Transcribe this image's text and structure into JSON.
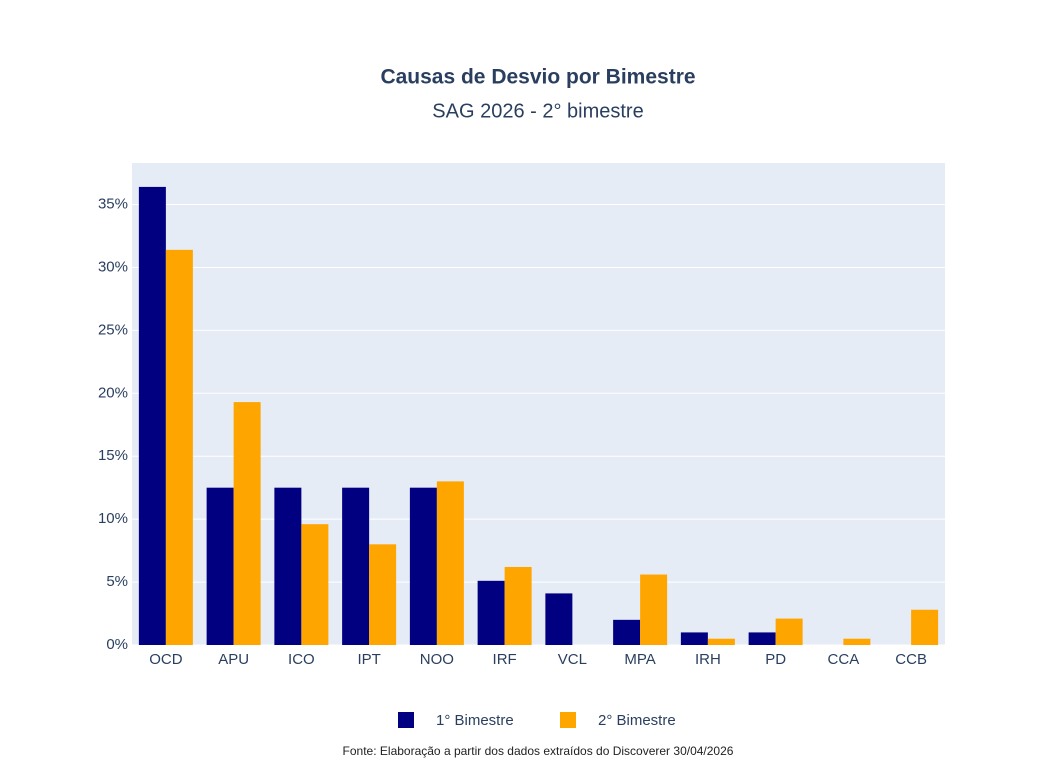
{
  "chart_data": {
    "type": "bar",
    "title": "Causas de Desvio por Bimestre",
    "subtitle": "SAG 2026 - 2° bimestre",
    "source": "Fonte: Elaboração a partir dos dados extraídos do Discoverer 30/04/2026",
    "categories": [
      "OCD",
      "APU",
      "ICO",
      "IPT",
      "NOO",
      "IRF",
      "VCL",
      "MPA",
      "IRH",
      "PD",
      "CCA",
      "CCB"
    ],
    "series": [
      {
        "name": "1° Bimestre",
        "color": "#000080",
        "values": [
          36.4,
          12.5,
          12.5,
          12.5,
          12.5,
          5.1,
          4.1,
          2.0,
          1.0,
          1.0,
          0,
          0
        ]
      },
      {
        "name": "2° Bimestre",
        "color": "#FFA500",
        "values": [
          31.4,
          19.3,
          9.6,
          8.0,
          13.0,
          6.2,
          0,
          5.6,
          0.5,
          2.1,
          0.5,
          2.8
        ]
      }
    ],
    "ylim": [
      0,
      38.3
    ],
    "yticks": [
      {
        "value": 0,
        "label": "0%"
      },
      {
        "value": 5,
        "label": "5%"
      },
      {
        "value": 10,
        "label": "10%"
      },
      {
        "value": 15,
        "label": "15%"
      },
      {
        "value": 20,
        "label": "20%"
      },
      {
        "value": 25,
        "label": "25%"
      },
      {
        "value": 30,
        "label": "30%"
      },
      {
        "value": 35,
        "label": "35%"
      }
    ],
    "grid": true,
    "legend": "bottom"
  }
}
